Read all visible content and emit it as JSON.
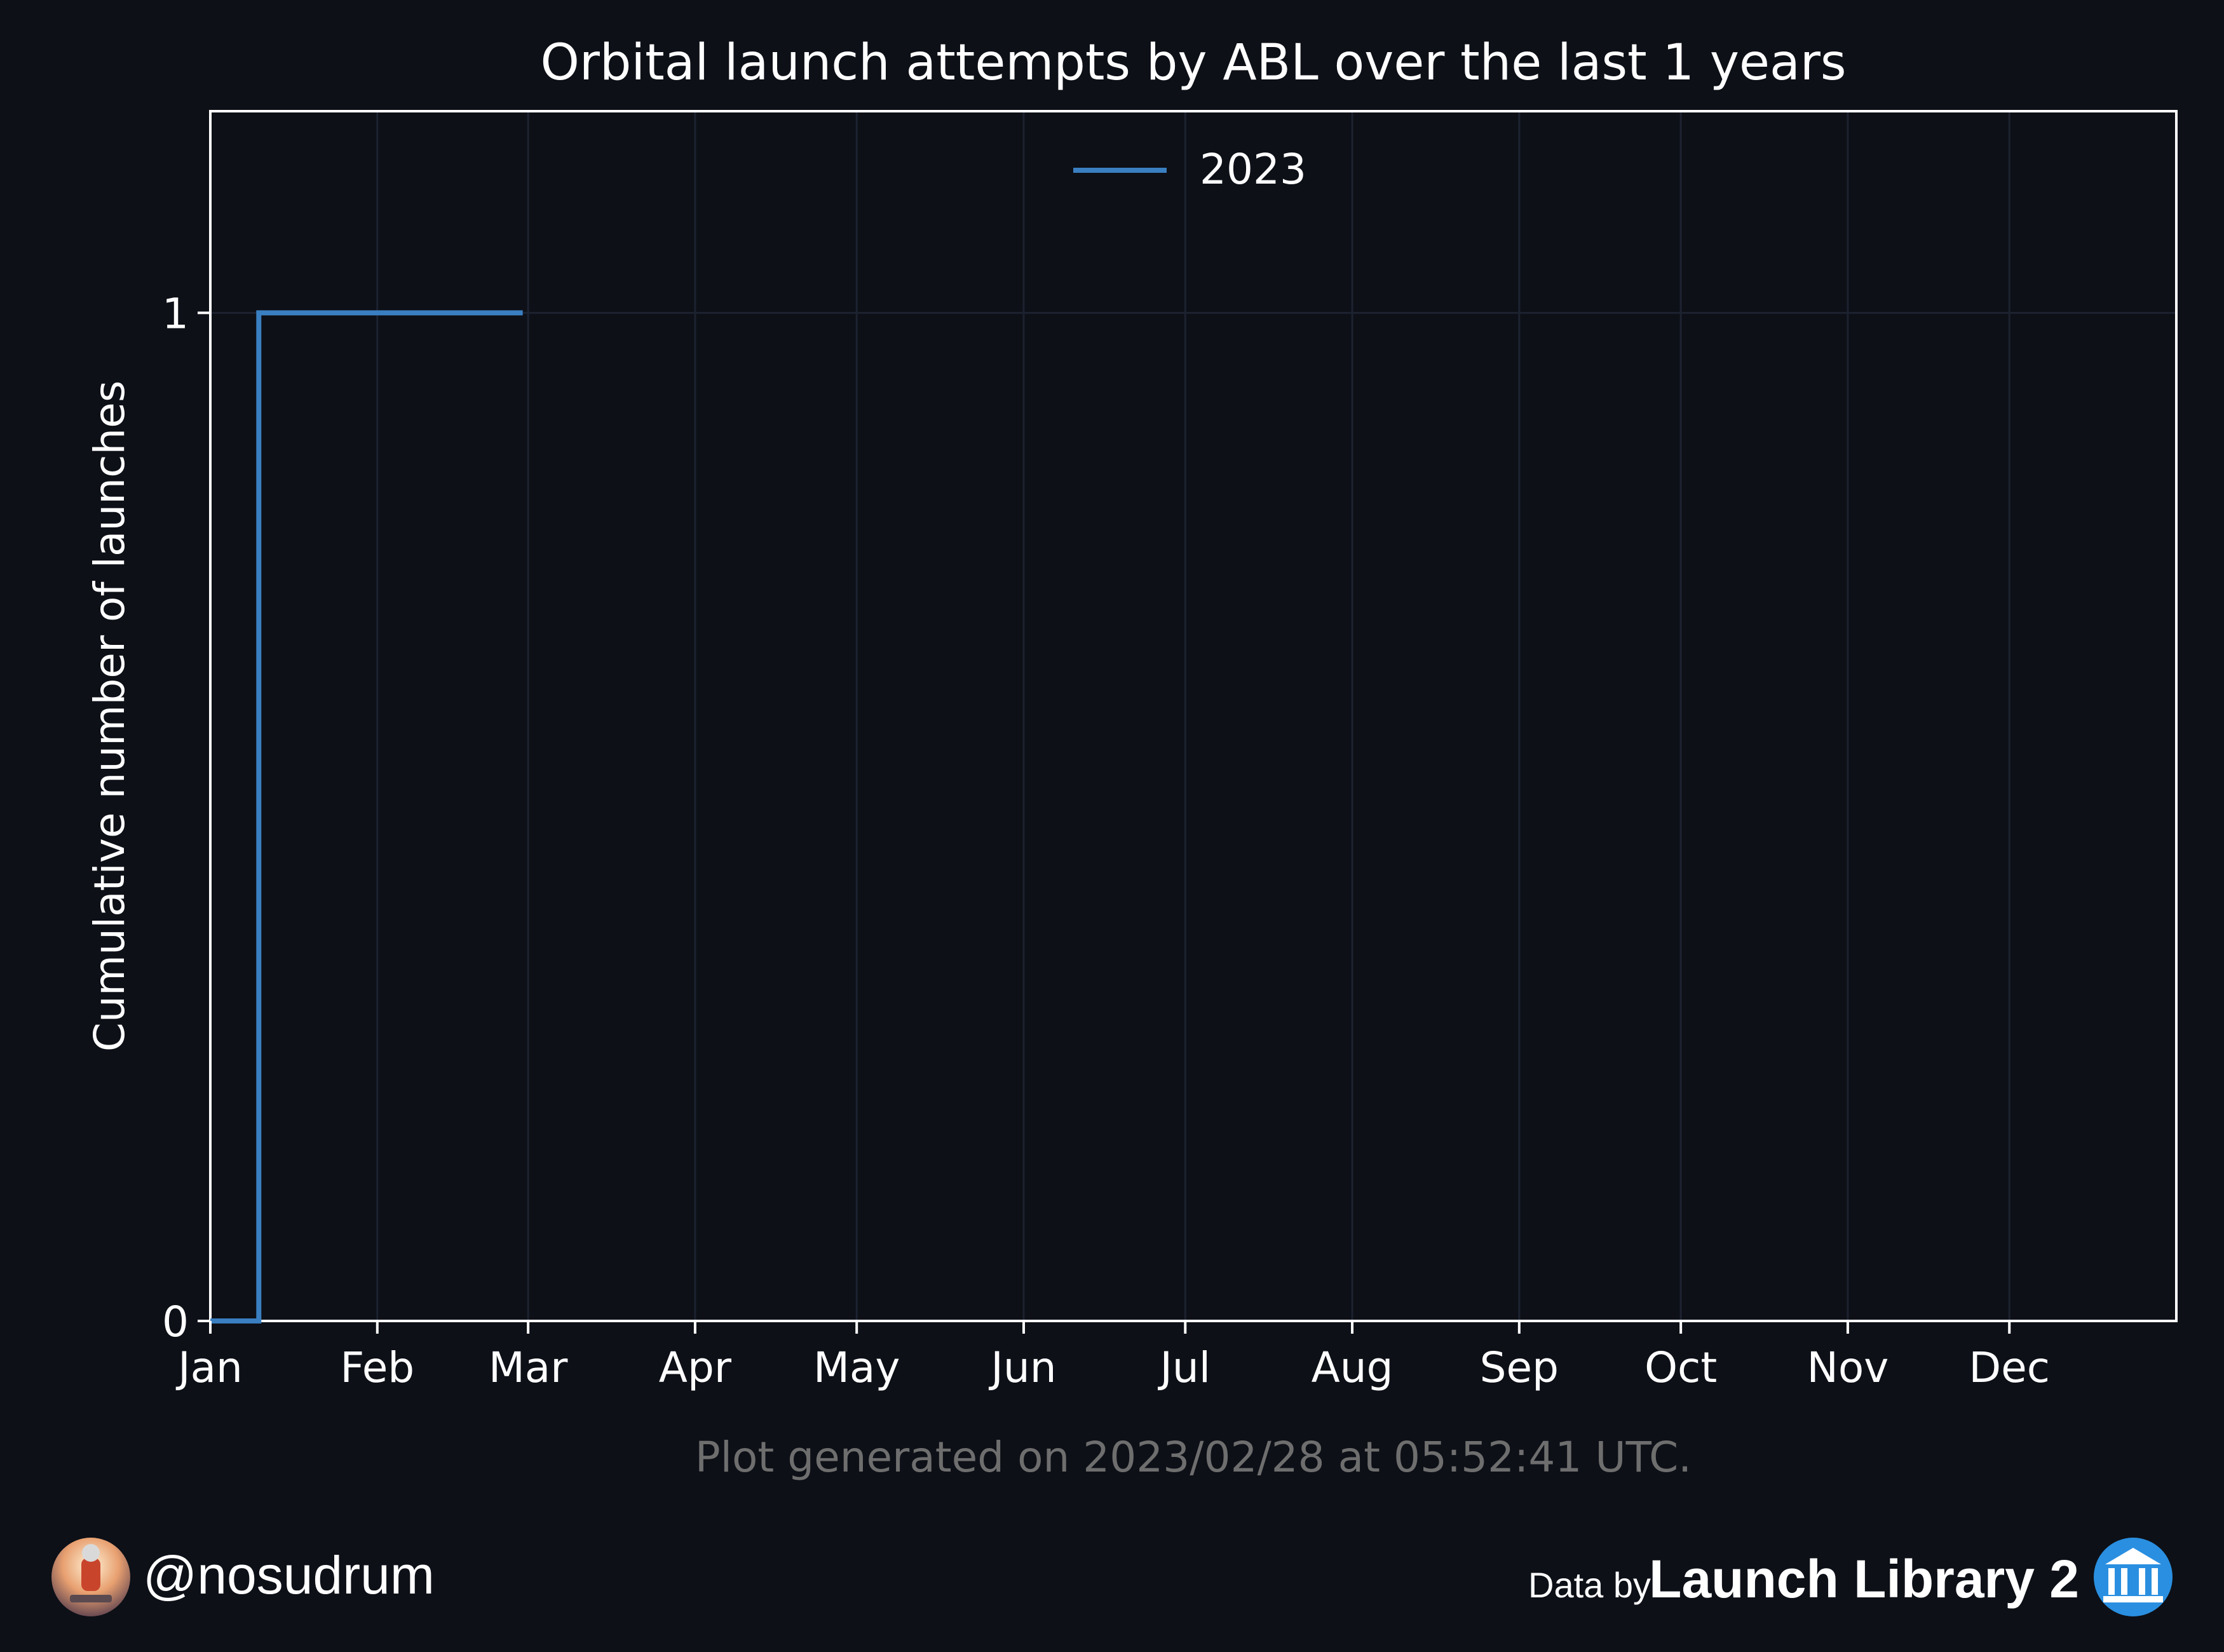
{
  "chart_data": {
    "type": "line",
    "title": "Orbital launch attempts by ABL over the last 1 years",
    "xlabel": "",
    "ylabel": "Cumulative number of launches",
    "x_ticks": [
      "Jan",
      "Feb",
      "Mar",
      "Apr",
      "May",
      "Jun",
      "Jul",
      "Aug",
      "Sep",
      "Oct",
      "Nov",
      "Dec"
    ],
    "y_ticks": [
      "0",
      "1"
    ],
    "ylim": [
      0,
      1.2
    ],
    "xlim": [
      "2023-01-01",
      "2023-12-31"
    ],
    "grid": true,
    "legend_position": "top-center",
    "series": [
      {
        "name": "2023",
        "color": "#3a7fc1",
        "step": "post",
        "x": [
          "2023-01-01",
          "2023-01-10",
          "2023-02-28"
        ],
        "y": [
          0,
          1,
          1
        ]
      }
    ]
  },
  "caption": "Plot generated on 2023/02/28 at 05:52:41 UTC.",
  "footer": {
    "author": "@nosudrum",
    "data_by": "Data by",
    "source": "Launch Library 2",
    "avatar_icon": "astronaut-avatar-icon",
    "source_icon": "library-icon"
  },
  "colors": {
    "background": "#0d1017",
    "axes": "#ffffff",
    "grid": "#1c2230",
    "caption": "#6e6e6e",
    "line": "#3a7fc1",
    "source_icon": "#2a8fe0"
  }
}
